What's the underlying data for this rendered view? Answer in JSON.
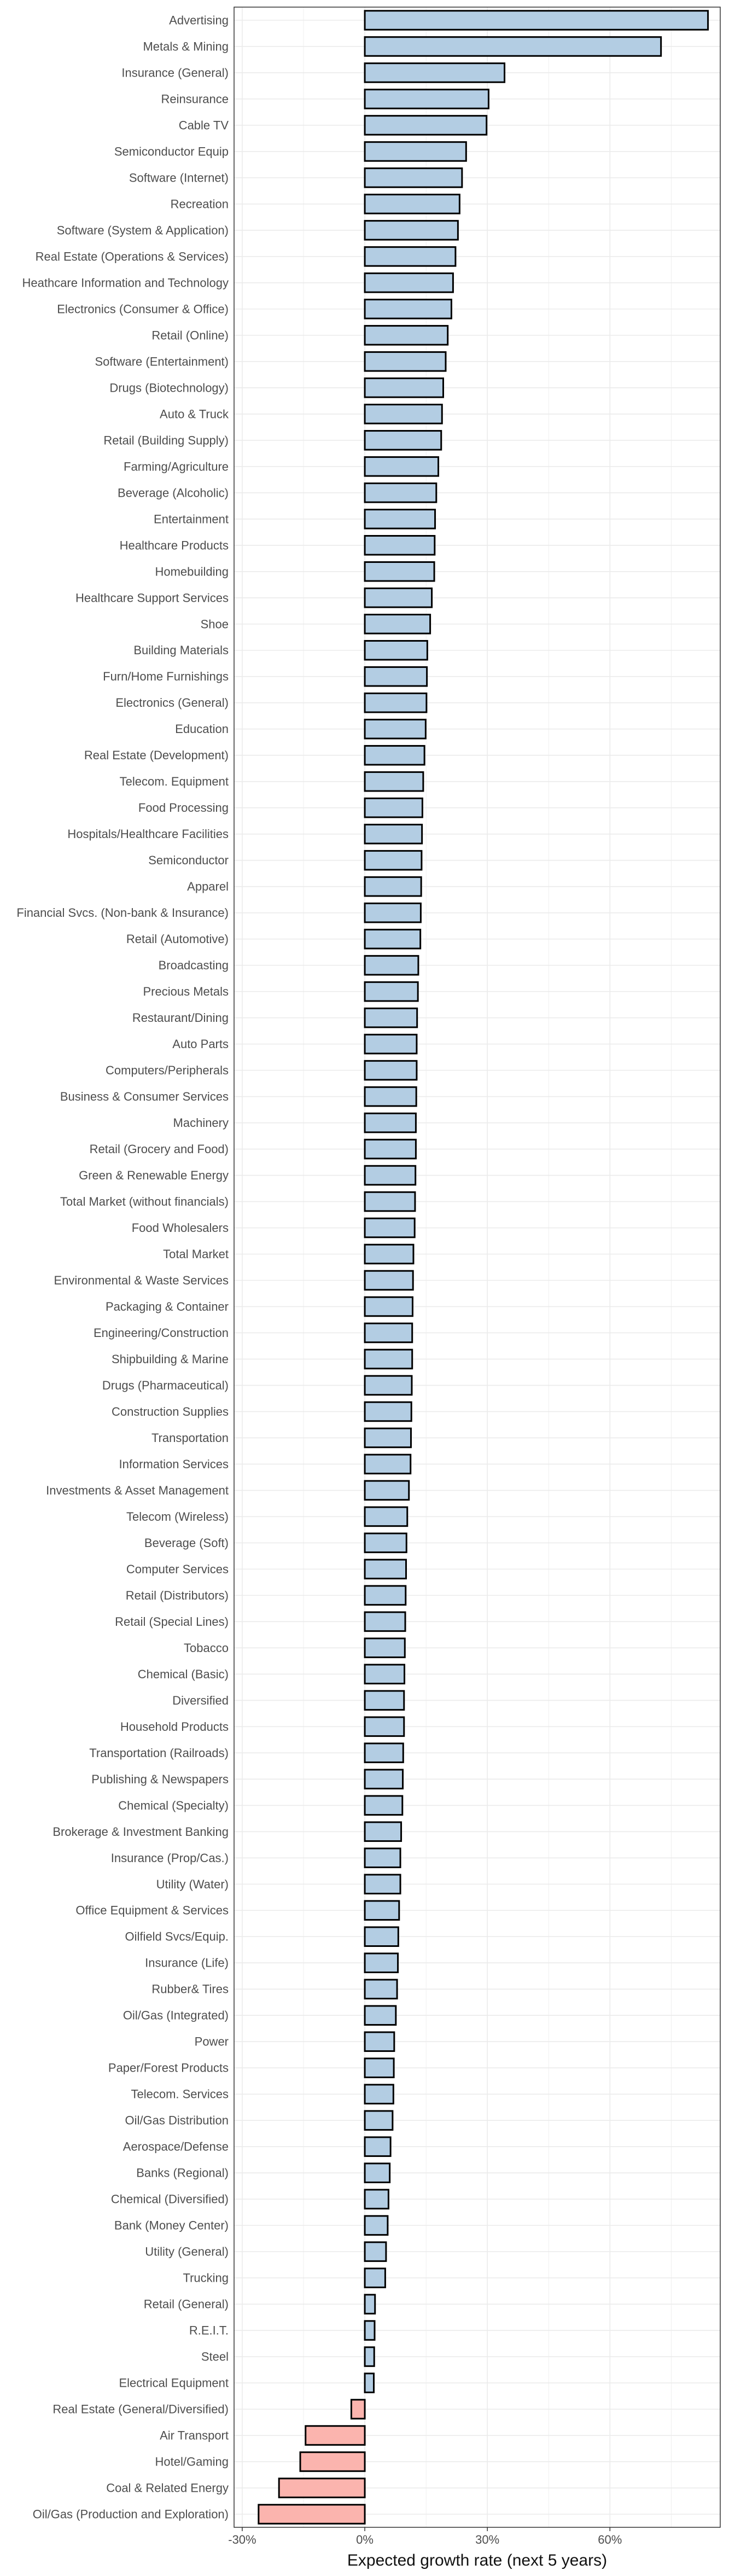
{
  "chart_data": {
    "type": "bar",
    "orientation": "horizontal",
    "xlabel": "Expected growth rate (next 5 years)",
    "ylabel": "",
    "title": "",
    "xlim": [
      -0.32,
      0.87
    ],
    "x_ticks": [
      -0.3,
      0.0,
      0.3,
      0.6
    ],
    "x_tick_labels": [
      "-30%",
      "0%",
      "30%",
      "60%"
    ],
    "grid": true,
    "legend": "none",
    "colors": {
      "positive": "#b3cde3",
      "negative": "#fbb4ae",
      "bar_outline": "#000000",
      "grid": "#ebebeb",
      "panel_border": "#333333"
    },
    "categories": [
      "Advertising",
      "Metals & Mining",
      "Insurance (General)",
      "Reinsurance",
      "Cable TV",
      "Semiconductor Equip",
      "Software (Internet)",
      "Recreation",
      "Software (System & Application)",
      "Real Estate (Operations & Services)",
      "Heathcare Information and Technology",
      "Electronics (Consumer & Office)",
      "Retail (Online)",
      "Software (Entertainment)",
      "Drugs (Biotechnology)",
      "Auto & Truck",
      "Retail (Building Supply)",
      "Farming/Agriculture",
      "Beverage (Alcoholic)",
      "Entertainment",
      "Healthcare Products",
      "Homebuilding",
      "Healthcare Support Services",
      "Shoe",
      "Building Materials",
      "Furn/Home Furnishings",
      "Electronics (General)",
      "Education",
      "Real Estate (Development)",
      "Telecom. Equipment",
      "Food Processing",
      "Hospitals/Healthcare Facilities",
      "Semiconductor",
      "Apparel",
      "Financial Svcs. (Non-bank & Insurance)",
      "Retail (Automotive)",
      "Broadcasting",
      "Precious Metals",
      "Restaurant/Dining",
      "Auto Parts",
      "Computers/Peripherals",
      "Business & Consumer Services",
      "Machinery",
      "Retail (Grocery and Food)",
      "Green & Renewable Energy",
      "Total Market (without financials)",
      "Food Wholesalers",
      "Total Market",
      "Environmental & Waste Services",
      "Packaging & Container",
      "Engineering/Construction",
      "Shipbuilding & Marine",
      "Drugs (Pharmaceutical)",
      "Construction Supplies",
      "Transportation",
      "Information Services",
      "Investments & Asset Management",
      "Telecom (Wireless)",
      "Beverage (Soft)",
      "Computer Services",
      "Retail (Distributors)",
      "Retail (Special Lines)",
      "Tobacco",
      "Chemical (Basic)",
      "Diversified",
      "Household Products",
      "Transportation (Railroads)",
      "Publishing & Newspapers",
      "Chemical (Specialty)",
      "Brokerage & Investment Banking",
      "Insurance (Prop/Cas.)",
      "Utility (Water)",
      "Office Equipment & Services",
      "Oilfield Svcs/Equip.",
      "Insurance (Life)",
      "Rubber& Tires",
      "Oil/Gas (Integrated)",
      "Power",
      "Paper/Forest Products",
      "Telecom. Services",
      "Oil/Gas Distribution",
      "Aerospace/Defense",
      "Banks (Regional)",
      "Chemical (Diversified)",
      "Bank (Money Center)",
      "Utility (General)",
      "Trucking",
      "Retail (General)",
      "R.E.I.T.",
      "Steel",
      "Electrical Equipment",
      "Real Estate (General/Diversified)",
      "Air Transport",
      "Hotel/Gaming",
      "Coal & Related Energy",
      "Oil/Gas (Production and Exploration)"
    ],
    "values": [
      0.84,
      0.725,
      0.342,
      0.303,
      0.298,
      0.248,
      0.238,
      0.232,
      0.228,
      0.222,
      0.216,
      0.212,
      0.203,
      0.198,
      0.192,
      0.189,
      0.187,
      0.18,
      0.175,
      0.172,
      0.171,
      0.17,
      0.164,
      0.16,
      0.153,
      0.152,
      0.151,
      0.149,
      0.146,
      0.143,
      0.141,
      0.14,
      0.139,
      0.138,
      0.137,
      0.136,
      0.131,
      0.13,
      0.128,
      0.127,
      0.127,
      0.126,
      0.125,
      0.125,
      0.124,
      0.123,
      0.122,
      0.119,
      0.118,
      0.117,
      0.116,
      0.116,
      0.115,
      0.114,
      0.113,
      0.112,
      0.108,
      0.104,
      0.102,
      0.101,
      0.1,
      0.099,
      0.098,
      0.097,
      0.096,
      0.096,
      0.094,
      0.093,
      0.092,
      0.089,
      0.087,
      0.087,
      0.084,
      0.082,
      0.081,
      0.079,
      0.076,
      0.072,
      0.071,
      0.07,
      0.068,
      0.063,
      0.061,
      0.058,
      0.056,
      0.052,
      0.05,
      0.025,
      0.024,
      0.023,
      0.022,
      -0.033,
      -0.145,
      -0.158,
      -0.21,
      -0.26
    ]
  }
}
